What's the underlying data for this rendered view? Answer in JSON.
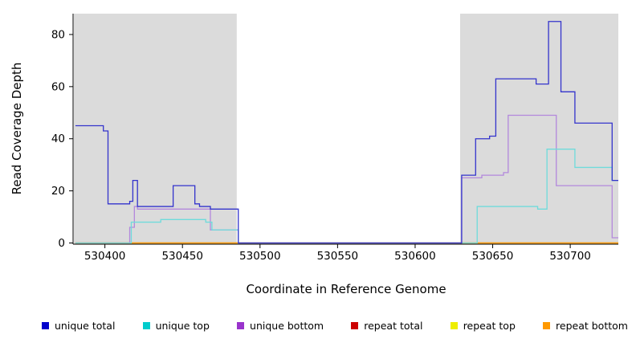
{
  "chart_data": {
    "type": "line",
    "title": "",
    "xlabel": "Coordinate in Reference Genome",
    "ylabel": "Read Coverage Depth",
    "xlim": [
      530380,
      530731
    ],
    "ylim": [
      0,
      88
    ],
    "xticks": [
      530400,
      530450,
      530500,
      530550,
      530600,
      530650,
      530700
    ],
    "yticks": [
      0,
      20,
      40,
      60,
      80
    ],
    "grid": false,
    "legend_position": "bottom",
    "shade_color": "#DBDBDB",
    "shaded_regions": [
      [
        530380,
        530485
      ],
      [
        530629,
        530731
      ]
    ],
    "series": [
      {
        "name": "repeat total",
        "color": "#CC0000",
        "points": [
          [
            530381,
            0
          ],
          [
            530731,
            0
          ]
        ]
      },
      {
        "name": "repeat top",
        "color": "#EEEE00",
        "points": [
          [
            530381,
            0
          ],
          [
            530731,
            0
          ]
        ]
      },
      {
        "name": "repeat bottom",
        "color": "#FF9900",
        "points": [
          [
            530381,
            0
          ],
          [
            530731,
            0
          ]
        ]
      },
      {
        "name": "unique bottom",
        "color": "#B388DC",
        "points": [
          [
            530381,
            0
          ],
          [
            530416,
            6
          ],
          [
            530419,
            14
          ],
          [
            530421,
            13
          ],
          [
            530468,
            5
          ],
          [
            530486,
            0
          ],
          [
            530630,
            25
          ],
          [
            530643,
            26
          ],
          [
            530657,
            27
          ],
          [
            530660,
            49
          ],
          [
            530691,
            22
          ],
          [
            530727,
            2
          ],
          [
            530731,
            2
          ]
        ]
      },
      {
        "name": "unique top",
        "color": "#6FDBDB",
        "points": [
          [
            530381,
            0
          ],
          [
            530417,
            8
          ],
          [
            530436,
            9
          ],
          [
            530465,
            8
          ],
          [
            530469,
            5
          ],
          [
            530486,
            0
          ],
          [
            530640,
            14
          ],
          [
            530679,
            13
          ],
          [
            530685,
            36
          ],
          [
            530703,
            29
          ],
          [
            530727,
            24
          ],
          [
            530731,
            24
          ]
        ]
      },
      {
        "name": "unique total",
        "color": "#3333CC",
        "points": [
          [
            530381,
            45
          ],
          [
            530399,
            43
          ],
          [
            530402,
            15
          ],
          [
            530416,
            16
          ],
          [
            530418,
            24
          ],
          [
            530421,
            14
          ],
          [
            530444,
            22
          ],
          [
            530458,
            15
          ],
          [
            530461,
            14
          ],
          [
            530468,
            13
          ],
          [
            530486,
            0
          ],
          [
            530630,
            26
          ],
          [
            530639,
            40
          ],
          [
            530648,
            41
          ],
          [
            530652,
            63
          ],
          [
            530678,
            61
          ],
          [
            530686,
            85
          ],
          [
            530694,
            58
          ],
          [
            530703,
            46
          ],
          [
            530727,
            24
          ],
          [
            530731,
            24
          ]
        ]
      }
    ],
    "legend": [
      {
        "label": "unique total",
        "color": "#0000CC"
      },
      {
        "label": "unique top",
        "color": "#00CCCC"
      },
      {
        "label": "unique bottom",
        "color": "#9933CC"
      },
      {
        "label": "repeat total",
        "color": "#CC0000"
      },
      {
        "label": "repeat top",
        "color": "#EEEE00"
      },
      {
        "label": "repeat bottom",
        "color": "#FF9900"
      }
    ]
  }
}
